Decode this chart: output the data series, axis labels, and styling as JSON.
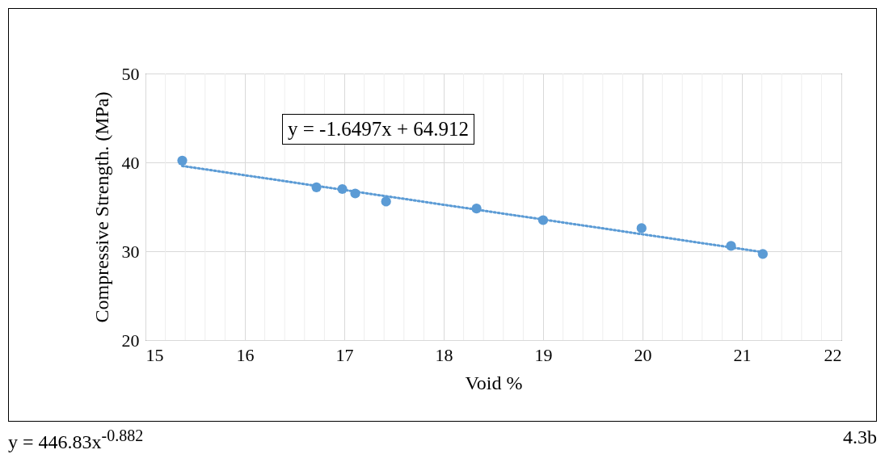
{
  "chart_data": {
    "type": "scatter",
    "xlabel": "Void %",
    "ylabel": "Compressive Strength. (MPa)",
    "xlim": [
      15,
      22
    ],
    "ylim": [
      20,
      50
    ],
    "xticks": [
      15,
      {
        "value": 15.2,
        "label": null
      },
      {
        "value": 15.4,
        "label": null
      },
      {
        "value": 15.6,
        "label": null
      },
      {
        "value": 15.8,
        "label": null
      },
      16,
      {
        "value": 16.2,
        "label": null
      },
      {
        "value": 16.4,
        "label": null
      },
      {
        "value": 16.6,
        "label": null
      },
      {
        "value": 16.8,
        "label": null
      },
      17,
      {
        "value": 17.2,
        "label": null
      },
      {
        "value": 17.4,
        "label": null
      },
      {
        "value": 17.6,
        "label": null
      },
      {
        "value": 17.8,
        "label": null
      },
      18,
      {
        "value": 18.2,
        "label": null
      },
      {
        "value": 18.4,
        "label": null
      },
      {
        "value": 18.6,
        "label": null
      },
      {
        "value": 18.8,
        "label": null
      },
      19,
      {
        "value": 19.2,
        "label": null
      },
      {
        "value": 19.4,
        "label": null
      },
      {
        "value": 19.6,
        "label": null
      },
      {
        "value": 19.8,
        "label": null
      },
      20,
      {
        "value": 20.2,
        "label": null
      },
      {
        "value": 20.4,
        "label": null
      },
      {
        "value": 20.6,
        "label": null
      },
      {
        "value": 20.8,
        "label": null
      },
      21,
      {
        "value": 21.2,
        "label": null
      },
      {
        "value": 21.4,
        "label": null
      },
      {
        "value": 21.6,
        "label": null
      },
      {
        "value": 21.8,
        "label": null
      },
      22
    ],
    "yticks": [
      20,
      30,
      40,
      50
    ],
    "grid": true,
    "series": [
      {
        "color": "#5b9bd5",
        "marker": "circle",
        "x": [
          15.37,
          16.72,
          16.98,
          17.11,
          17.42,
          18.33,
          19.0,
          19.99,
          20.89,
          21.21
        ],
        "values": [
          40.2,
          37.2,
          37.0,
          36.5,
          35.6,
          34.8,
          33.5,
          32.6,
          30.6,
          29.7
        ]
      },
      {
        "type": "line",
        "color": "#5b9bd5",
        "line_style": "dotted",
        "marker": "none",
        "x": [
          15.37,
          21.21
        ],
        "values": [
          39.6,
          29.9
        ]
      }
    ],
    "annotations": [
      "y = -1.6497x + 64.912",
      "y = 446.83x$^{-0.882}$",
      "4.3b"
    ]
  }
}
